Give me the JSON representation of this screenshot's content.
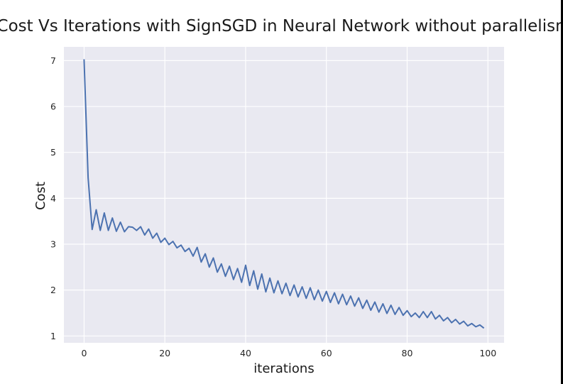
{
  "chart_data": {
    "type": "line",
    "title": "Cost Vs Iterations with SignSGD in Neural Network without parallelism",
    "xlabel": "iterations",
    "ylabel": "Cost",
    "xlim": [
      -5,
      104
    ],
    "ylim": [
      0.85,
      7.3
    ],
    "xticks": [
      0,
      20,
      40,
      60,
      80,
      100
    ],
    "yticks": [
      1,
      2,
      3,
      4,
      5,
      6,
      7
    ],
    "grid": true,
    "legend": "none",
    "colors": {
      "background": "#e9e9f1",
      "grid": "#ffffff",
      "line": "#4c72b0"
    },
    "series": [
      {
        "x": [
          0,
          1,
          2,
          3,
          4,
          5,
          6,
          7,
          8,
          9,
          10,
          11,
          12,
          13,
          14,
          15,
          16,
          17,
          18,
          19,
          20,
          21,
          22,
          23,
          24,
          25,
          26,
          27,
          28,
          29,
          30,
          31,
          32,
          33,
          34,
          35,
          36,
          37,
          38,
          39,
          40,
          41,
          42,
          43,
          44,
          45,
          46,
          47,
          48,
          49,
          50,
          51,
          52,
          53,
          54,
          55,
          56,
          57,
          58,
          59,
          60,
          61,
          62,
          63,
          64,
          65,
          66,
          67,
          68,
          69,
          70,
          71,
          72,
          73,
          74,
          75,
          76,
          77,
          78,
          79,
          80,
          81,
          82,
          83,
          84,
          85,
          86,
          87,
          88,
          89,
          90,
          91,
          92,
          93,
          94,
          95,
          96,
          97,
          98,
          99
        ],
        "y": [
          7.03,
          4.45,
          3.32,
          3.75,
          3.3,
          3.68,
          3.3,
          3.57,
          3.28,
          3.48,
          3.27,
          3.38,
          3.37,
          3.3,
          3.38,
          3.2,
          3.33,
          3.13,
          3.24,
          3.04,
          3.13,
          2.99,
          3.06,
          2.92,
          2.98,
          2.84,
          2.91,
          2.74,
          2.93,
          2.61,
          2.79,
          2.5,
          2.7,
          2.39,
          2.57,
          2.3,
          2.52,
          2.23,
          2.47,
          2.17,
          2.54,
          2.1,
          2.42,
          2.02,
          2.35,
          1.96,
          2.26,
          1.94,
          2.2,
          1.92,
          2.15,
          1.88,
          2.11,
          1.85,
          2.07,
          1.82,
          2.05,
          1.79,
          2.0,
          1.76,
          1.97,
          1.73,
          1.94,
          1.7,
          1.91,
          1.68,
          1.87,
          1.65,
          1.83,
          1.6,
          1.78,
          1.56,
          1.74,
          1.52,
          1.7,
          1.49,
          1.67,
          1.47,
          1.62,
          1.45,
          1.55,
          1.42,
          1.5,
          1.4,
          1.53,
          1.4,
          1.53,
          1.37,
          1.45,
          1.33,
          1.4,
          1.29,
          1.36,
          1.26,
          1.32,
          1.22,
          1.27,
          1.2,
          1.24,
          1.17
        ]
      }
    ]
  }
}
